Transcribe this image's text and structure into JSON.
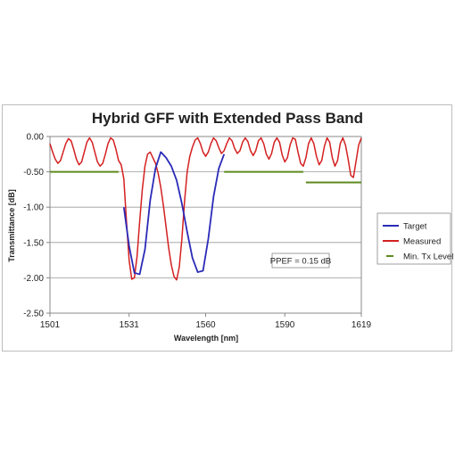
{
  "chart_data": {
    "type": "line",
    "title": "Hybrid GFF with Extended Pass Band",
    "xlabel": "Wavelength [nm]",
    "ylabel": "Transmittance [dB]",
    "xlim": [
      1501,
      1619
    ],
    "ylim": [
      -2.5,
      0.0
    ],
    "x_ticks": [
      1501,
      1531,
      1560,
      1590,
      1619
    ],
    "y_ticks": [
      0.0,
      -0.5,
      -1.0,
      -1.5,
      -2.0,
      -2.5
    ],
    "y_tick_labels": [
      "0.00",
      "-0.50",
      "-1.00",
      "-1.50",
      "-2.00",
      "-2.50"
    ],
    "grid": {
      "horizontal": true,
      "vertical": false
    },
    "legend": "right",
    "annotation": "PPEF = 0.15 dB",
    "series": [
      {
        "name": "Target",
        "color": "#2a2ab8",
        "x": [
          1529,
          1531,
          1533,
          1535,
          1537,
          1539,
          1541,
          1543,
          1545,
          1547,
          1549,
          1551,
          1553,
          1555,
          1557,
          1559,
          1561,
          1563,
          1565,
          1567
        ],
        "y": [
          -1.0,
          -1.55,
          -1.93,
          -1.95,
          -1.6,
          -0.9,
          -0.45,
          -0.22,
          -0.3,
          -0.42,
          -0.62,
          -0.95,
          -1.35,
          -1.72,
          -1.92,
          -1.9,
          -1.45,
          -0.85,
          -0.45,
          -0.25
        ]
      },
      {
        "name": "Measured",
        "color": "#d42020",
        "x": [
          1501,
          1502,
          1503,
          1504,
          1505,
          1506,
          1507,
          1508,
          1509,
          1510,
          1511,
          1512,
          1513,
          1514,
          1515,
          1516,
          1517,
          1518,
          1519,
          1520,
          1521,
          1522,
          1523,
          1524,
          1525,
          1526,
          1527,
          1528,
          1529,
          1530,
          1531,
          1532,
          1533,
          1534,
          1535,
          1536,
          1537,
          1538,
          1539,
          1540,
          1541,
          1542,
          1543,
          1544,
          1545,
          1546,
          1547,
          1548,
          1549,
          1550,
          1551,
          1552,
          1553,
          1554,
          1555,
          1556,
          1557,
          1558,
          1559,
          1560,
          1561,
          1562,
          1563,
          1564,
          1565,
          1566,
          1567,
          1568,
          1569,
          1570,
          1571,
          1572,
          1573,
          1574,
          1575,
          1576,
          1577,
          1578,
          1579,
          1580,
          1581,
          1582,
          1583,
          1584,
          1585,
          1586,
          1587,
          1588,
          1589,
          1590,
          1591,
          1592,
          1593,
          1594,
          1595,
          1596,
          1597,
          1598,
          1599,
          1600,
          1601,
          1602,
          1603,
          1604,
          1605,
          1606,
          1607,
          1608,
          1609,
          1610,
          1611,
          1612,
          1613,
          1614,
          1615,
          1616,
          1617,
          1618,
          1619
        ],
        "y": [
          -0.1,
          -0.22,
          -0.32,
          -0.38,
          -0.34,
          -0.22,
          -0.1,
          -0.03,
          -0.06,
          -0.18,
          -0.32,
          -0.4,
          -0.36,
          -0.22,
          -0.08,
          -0.02,
          -0.08,
          -0.22,
          -0.36,
          -0.42,
          -0.38,
          -0.25,
          -0.1,
          -0.02,
          -0.05,
          -0.18,
          -0.34,
          -0.4,
          -0.6,
          -1.2,
          -1.75,
          -2.02,
          -2.0,
          -1.7,
          -1.2,
          -0.75,
          -0.42,
          -0.25,
          -0.22,
          -0.3,
          -0.38,
          -0.52,
          -0.72,
          -0.98,
          -1.28,
          -1.58,
          -1.82,
          -1.98,
          -2.03,
          -1.85,
          -1.45,
          -0.92,
          -0.5,
          -0.28,
          -0.15,
          -0.05,
          -0.02,
          -0.1,
          -0.22,
          -0.28,
          -0.22,
          -0.1,
          -0.02,
          -0.06,
          -0.16,
          -0.24,
          -0.2,
          -0.1,
          -0.02,
          -0.06,
          -0.17,
          -0.24,
          -0.2,
          -0.08,
          -0.02,
          -0.07,
          -0.2,
          -0.27,
          -0.2,
          -0.06,
          -0.02,
          -0.1,
          -0.25,
          -0.32,
          -0.24,
          -0.08,
          -0.02,
          -0.08,
          -0.26,
          -0.36,
          -0.3,
          -0.12,
          -0.02,
          -0.04,
          -0.22,
          -0.38,
          -0.42,
          -0.3,
          -0.1,
          -0.02,
          -0.1,
          -0.28,
          -0.4,
          -0.34,
          -0.14,
          -0.02,
          -0.08,
          -0.3,
          -0.42,
          -0.34,
          -0.1,
          -0.02,
          -0.12,
          -0.32,
          -0.55,
          -0.58,
          -0.35,
          -0.12,
          -0.02
        ]
      },
      {
        "name": "Min. Tx Level",
        "color": "#5e8a1e",
        "segments": [
          {
            "x": [
              1501,
              1527
            ],
            "y": [
              -0.5,
              -0.5
            ]
          },
          {
            "x": [
              1567,
              1597
            ],
            "y": [
              -0.5,
              -0.5
            ]
          },
          {
            "x": [
              1598,
              1619
            ],
            "y": [
              -0.65,
              -0.65
            ]
          }
        ]
      }
    ]
  }
}
